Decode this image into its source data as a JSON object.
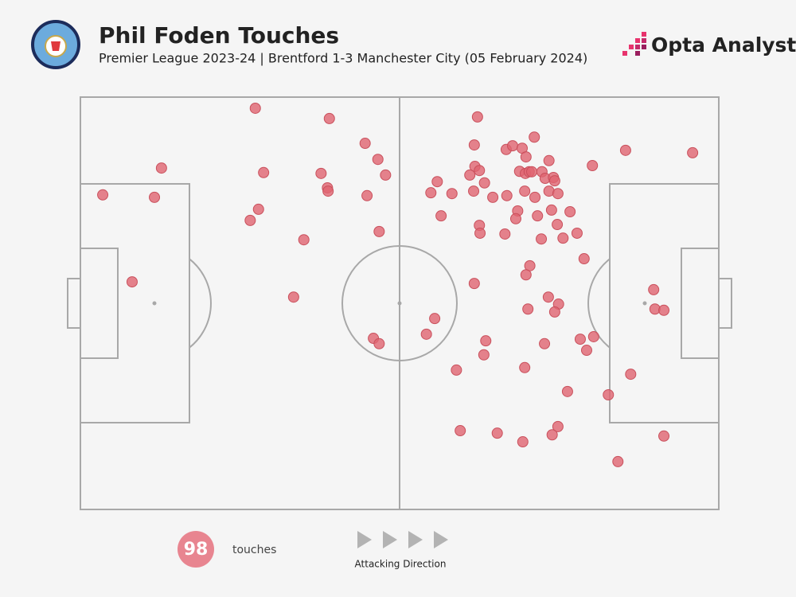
{
  "chart_data": {
    "type": "scatter",
    "title": "Phil Foden Touches",
    "subtitle": "Premier League 2023-24 | Brentford 1-3 Manchester City (05 February 2024)",
    "xlim": [
      0,
      100
    ],
    "ylim": [
      0,
      100
    ],
    "color": "#e06470",
    "x": [
      27.4,
      39.0,
      44.6,
      46.6,
      47.8,
      37.7,
      28.7,
      12.7,
      3.5,
      11.6,
      38.7,
      38.8,
      44.9,
      27.9,
      26.6,
      35.0,
      46.8,
      8.1,
      33.4,
      45.9,
      46.8,
      55.5,
      54.2,
      62.2,
      61.7,
      66.7,
      67.7,
      69.2,
      71.1,
      69.8,
      73.4,
      80.2,
      85.4,
      95.9,
      61.8,
      62.5,
      61.0,
      55.9,
      63.3,
      54.9,
      58.2,
      61.6,
      64.6,
      66.8,
      68.8,
      69.7,
      70.3,
      70.7,
      72.3,
      72.8,
      74.1,
      74.3,
      69.6,
      71.2,
      73.4,
      74.8,
      56.5,
      68.5,
      73.8,
      76.7,
      68.2,
      71.6,
      62.5,
      62.6,
      66.5,
      72.2,
      74.7,
      75.6,
      77.8,
      78.9,
      70.4,
      69.8,
      61.7,
      73.3,
      74.9,
      70.1,
      74.3,
      89.8,
      90.0,
      91.4,
      80.4,
      78.3,
      79.3,
      72.7,
      63.5,
      63.2,
      69.6,
      58.9,
      86.2,
      76.3,
      82.7,
      74.8,
      73.9,
      59.5,
      65.3,
      69.3,
      91.4,
      84.2
    ],
    "values": [
      97.3,
      94.8,
      88.8,
      84.9,
      81.1,
      81.5,
      81.7,
      82.8,
      76.3,
      75.7,
      78.0,
      77.2,
      76.1,
      72.8,
      70.1,
      65.4,
      67.4,
      55.2,
      51.5,
      41.5,
      40.2,
      46.3,
      42.5,
      95.2,
      88.4,
      87.3,
      88.2,
      87.6,
      90.3,
      85.5,
      84.6,
      83.4,
      87.1,
      86.5,
      83.2,
      82.2,
      81.1,
      79.5,
      79.2,
      76.8,
      76.6,
      77.2,
      75.7,
      76.1,
      82.0,
      81.5,
      81.9,
      81.9,
      81.9,
      80.3,
      80.5,
      79.7,
      77.2,
      75.7,
      77.2,
      76.6,
      71.2,
      72.4,
      72.6,
      72.2,
      70.5,
      71.2,
      68.9,
      67.0,
      66.8,
      65.6,
      69.1,
      65.8,
      67.0,
      60.8,
      59.1,
      56.9,
      54.8,
      51.5,
      49.8,
      48.6,
      47.9,
      53.3,
      48.6,
      48.3,
      41.9,
      41.3,
      38.6,
      40.2,
      40.9,
      37.5,
      34.4,
      33.8,
      32.8,
      28.6,
      27.8,
      20.1,
      18.1,
      19.1,
      18.5,
      16.4,
      17.8,
      11.6
    ],
    "total": 98,
    "total_label": "touches",
    "direction_label": "Attacking Direction"
  },
  "brand": "Opta Analyst"
}
